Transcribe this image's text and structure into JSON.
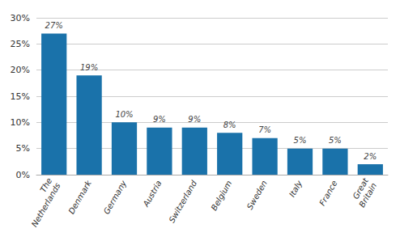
{
  "chart_data": {
    "type": "bar",
    "categories": [
      "The\nNetherlands",
      "Denmark",
      "Germany",
      "Austria",
      "Switzerland",
      "Belgium",
      "Sweden",
      "Italy",
      "France",
      "Great\nBritain"
    ],
    "values": [
      27,
      19,
      10,
      9,
      9,
      8,
      7,
      5,
      5,
      2
    ],
    "value_labels": [
      "27%",
      "19%",
      "10%",
      "9%",
      "9%",
      "8%",
      "7%",
      "5%",
      "5%",
      "2%"
    ],
    "data_labels": true,
    "color": "#1a72aa",
    "ylim": [
      0,
      30
    ],
    "yticks": [
      {
        "value": 0,
        "label": "0%"
      },
      {
        "value": 5,
        "label": "5%"
      },
      {
        "value": 10,
        "label": "10%"
      },
      {
        "value": 15,
        "label": "15%"
      },
      {
        "value": 20,
        "label": "20%"
      },
      {
        "value": 25,
        "label": "25%"
      },
      {
        "value": 30,
        "label": "30%"
      }
    ],
    "grid": true
  }
}
